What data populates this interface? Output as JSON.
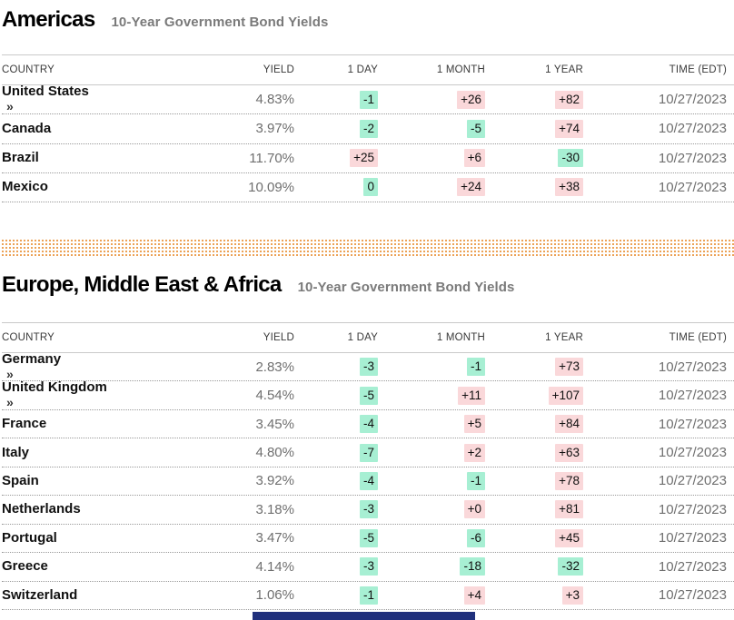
{
  "colors": {
    "increase_bg": "#fad8da",
    "decrease_bg": "#a7efd3",
    "ad_dot_color": "#e5831e",
    "bottom_bar_color": "#20307c"
  },
  "columns": [
    "COUNTRY",
    "YIELD",
    "1 DAY",
    "1 MONTH",
    "1 YEAR",
    "TIME (EDT)"
  ],
  "column_keys": [
    "country",
    "yield",
    "1-day",
    "1-month",
    "1-year",
    "time"
  ],
  "sections": [
    {
      "title": "Americas",
      "subtitle": "10-Year Government Bond Yields",
      "rows": [
        {
          "country": "United States",
          "arrow": "»",
          "yield": "4.83%",
          "changes": [
            {
              "label": "-1",
              "tone": "decrease"
            },
            {
              "label": "+26",
              "tone": "increase"
            },
            {
              "label": "+82",
              "tone": "increase"
            }
          ],
          "time": "10/27/2023"
        },
        {
          "country": "Canada",
          "arrow": "",
          "yield": "3.97%",
          "changes": [
            {
              "label": "-2",
              "tone": "decrease"
            },
            {
              "label": "-5",
              "tone": "decrease"
            },
            {
              "label": "+74",
              "tone": "increase"
            }
          ],
          "time": "10/27/2023"
        },
        {
          "country": "Brazil",
          "arrow": "",
          "yield": "11.70%",
          "changes": [
            {
              "label": "+25",
              "tone": "increase"
            },
            {
              "label": "+6",
              "tone": "increase"
            },
            {
              "label": "-30",
              "tone": "decrease"
            }
          ],
          "time": "10/27/2023"
        },
        {
          "country": "Mexico",
          "arrow": "",
          "yield": "10.09%",
          "changes": [
            {
              "label": "0",
              "tone": "decrease"
            },
            {
              "label": "+24",
              "tone": "increase"
            },
            {
              "label": "+38",
              "tone": "increase"
            }
          ],
          "time": "10/27/2023"
        }
      ]
    },
    {
      "title": "Europe, Middle East & Africa",
      "subtitle": "10-Year Government Bond Yields",
      "rows": [
        {
          "country": "Germany",
          "arrow": "»",
          "yield": "2.83%",
          "changes": [
            {
              "label": "-3",
              "tone": "decrease"
            },
            {
              "label": "-1",
              "tone": "decrease"
            },
            {
              "label": "+73",
              "tone": "increase"
            }
          ],
          "time": "10/27/2023"
        },
        {
          "country": "United Kingdom",
          "arrow": "»",
          "yield": "4.54%",
          "changes": [
            {
              "label": "-5",
              "tone": "decrease"
            },
            {
              "label": "+11",
              "tone": "increase"
            },
            {
              "label": "+107",
              "tone": "increase"
            }
          ],
          "time": "10/27/2023"
        },
        {
          "country": "France",
          "arrow": "",
          "yield": "3.45%",
          "changes": [
            {
              "label": "-4",
              "tone": "decrease"
            },
            {
              "label": "+5",
              "tone": "increase"
            },
            {
              "label": "+84",
              "tone": "increase"
            }
          ],
          "time": "10/27/2023"
        },
        {
          "country": "Italy",
          "arrow": "",
          "yield": "4.80%",
          "changes": [
            {
              "label": "-7",
              "tone": "decrease"
            },
            {
              "label": "+2",
              "tone": "increase"
            },
            {
              "label": "+63",
              "tone": "increase"
            }
          ],
          "time": "10/27/2023"
        },
        {
          "country": "Spain",
          "arrow": "",
          "yield": "3.92%",
          "changes": [
            {
              "label": "-4",
              "tone": "decrease"
            },
            {
              "label": "-1",
              "tone": "decrease"
            },
            {
              "label": "+78",
              "tone": "increase"
            }
          ],
          "time": "10/27/2023"
        },
        {
          "country": "Netherlands",
          "arrow": "",
          "yield": "3.18%",
          "changes": [
            {
              "label": "-3",
              "tone": "decrease"
            },
            {
              "label": "+0",
              "tone": "increase"
            },
            {
              "label": "+81",
              "tone": "increase"
            }
          ],
          "time": "10/27/2023"
        },
        {
          "country": "Portugal",
          "arrow": "",
          "yield": "3.47%",
          "changes": [
            {
              "label": "-5",
              "tone": "decrease"
            },
            {
              "label": "-6",
              "tone": "decrease"
            },
            {
              "label": "+45",
              "tone": "increase"
            }
          ],
          "time": "10/27/2023"
        },
        {
          "country": "Greece",
          "arrow": "",
          "yield": "4.14%",
          "changes": [
            {
              "label": "-3",
              "tone": "decrease"
            },
            {
              "label": "-18",
              "tone": "decrease"
            },
            {
              "label": "-32",
              "tone": "decrease"
            }
          ],
          "time": "10/27/2023"
        },
        {
          "country": "Switzerland",
          "arrow": "",
          "yield": "1.06%",
          "changes": [
            {
              "label": "-1",
              "tone": "decrease"
            },
            {
              "label": "+4",
              "tone": "increase"
            },
            {
              "label": "+3",
              "tone": "increase"
            }
          ],
          "time": "10/27/2023"
        }
      ]
    }
  ]
}
